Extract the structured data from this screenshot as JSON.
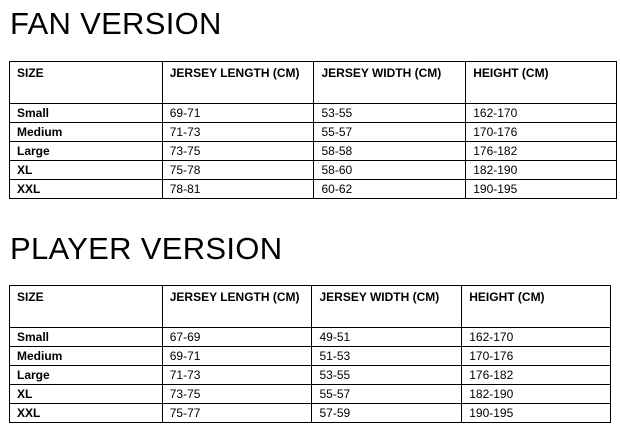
{
  "tables": [
    {
      "title": "FAN VERSION",
      "headers": [
        "SIZE",
        "JERSEY LENGTH (CM)",
        "JERSEY WIDTH (CM)",
        "HEIGHT (CM)"
      ],
      "rows": [
        [
          "Small",
          "69-71",
          "53-55",
          "162-170"
        ],
        [
          "Medium",
          "71-73",
          "55-57",
          "170-176"
        ],
        [
          "Large",
          "73-75",
          "58-58",
          "176-182"
        ],
        [
          "XL",
          "75-78",
          "58-60",
          "182-190"
        ],
        [
          "XXL",
          "78-81",
          "60-62",
          "190-195"
        ]
      ]
    },
    {
      "title": "PLAYER VERSION",
      "headers": [
        "SIZE",
        "JERSEY LENGTH (CM)",
        "JERSEY WIDTH (CM)",
        "HEIGHT (CM)"
      ],
      "rows": [
        [
          "Small",
          "67-69",
          "49-51",
          "162-170"
        ],
        [
          "Medium",
          "69-71",
          "51-53",
          "170-176"
        ],
        [
          "Large",
          "71-73",
          "53-55",
          "176-182"
        ],
        [
          "XL",
          "73-75",
          "55-57",
          "182-190"
        ],
        [
          "XXL",
          "75-77",
          "57-59",
          "190-195"
        ]
      ]
    }
  ]
}
